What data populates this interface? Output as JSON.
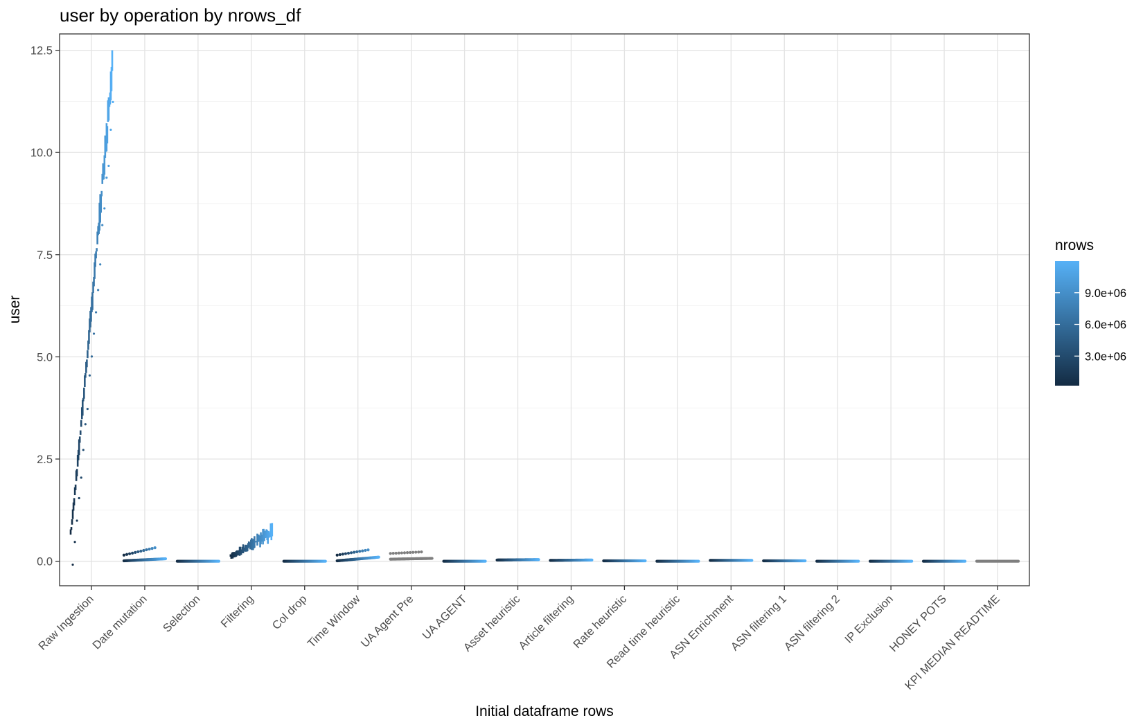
{
  "chart_data": {
    "type": "scatter",
    "title": "user by operation by nrows_df",
    "xlabel": "Initial dataframe rows",
    "ylabel": "user",
    "ylim": [
      -0.6,
      12.9
    ],
    "yticks": [
      0.0,
      2.5,
      5.0,
      7.5,
      10.0,
      12.5
    ],
    "ytick_labels": [
      "0.0",
      "2.5",
      "5.0",
      "7.5",
      "10.0",
      "12.5"
    ],
    "categories": [
      "Raw Ingestion",
      "Date mutation",
      "Selection",
      "Filtering",
      "Col drop",
      "Time Window",
      "UA Agent Pre",
      "UA AGENT",
      "Asset heuristic",
      "Article filtering",
      "Rate heuristic",
      "Read time heuristic",
      "ASN Enrichment",
      "ASN filtering 1",
      "ASN filtering 2",
      "IP Exclusion",
      "HONEY POTS",
      "KPI MEDIAN READTIME"
    ],
    "grid": true,
    "legend": {
      "title": "nrows",
      "position": "right",
      "type": "colorbar",
      "range": [
        200000,
        12000000
      ],
      "ticks": [
        3000000,
        6000000,
        9000000
      ],
      "tick_labels": [
        "3.0e+06",
        "6.0e+06",
        "9.0e+06"
      ],
      "low_color": "#132B43",
      "high_color": "#56B1F7",
      "na_color": "#7f7f7f"
    },
    "series": [
      {
        "category": "Raw Ingestion",
        "shape": "rising",
        "y_start": 0.65,
        "y_end": 12.05,
        "jitter": 0.35,
        "outliers": true
      },
      {
        "category": "Date mutation",
        "shape": "flat",
        "y_start": 0.01,
        "y_end": 0.06,
        "upper_start": 0.15,
        "upper_end": 0.39
      },
      {
        "category": "Selection",
        "shape": "flat",
        "y_start": 0.0,
        "y_end": 0.0
      },
      {
        "category": "Filtering",
        "shape": "rising",
        "y_start": 0.12,
        "y_end": 0.72,
        "jitter": 0.18
      },
      {
        "category": "Col drop",
        "shape": "flat",
        "y_start": 0.0,
        "y_end": 0.0
      },
      {
        "category": "Time Window",
        "shape": "flat",
        "y_start": 0.01,
        "y_end": 0.1,
        "upper_start": 0.15,
        "upper_end": 0.32
      },
      {
        "category": "UA Agent Pre",
        "shape": "flat",
        "y_start": 0.05,
        "y_end": 0.07,
        "na": true,
        "upper_start": 0.19,
        "upper_end": 0.24
      },
      {
        "category": "UA AGENT",
        "shape": "flat",
        "y_start": 0.0,
        "y_end": 0.0
      },
      {
        "category": "Asset heuristic",
        "shape": "flat",
        "y_start": 0.03,
        "y_end": 0.04
      },
      {
        "category": "Article filtering",
        "shape": "flat",
        "y_start": 0.02,
        "y_end": 0.03
      },
      {
        "category": "Rate heuristic",
        "shape": "flat",
        "y_start": 0.01,
        "y_end": 0.01
      },
      {
        "category": "Read time heuristic",
        "shape": "flat",
        "y_start": 0.0,
        "y_end": 0.0
      },
      {
        "category": "ASN Enrichment",
        "shape": "flat",
        "y_start": 0.02,
        "y_end": 0.02
      },
      {
        "category": "ASN filtering 1",
        "shape": "flat",
        "y_start": 0.01,
        "y_end": 0.01
      },
      {
        "category": "ASN filtering 2",
        "shape": "flat",
        "y_start": 0.0,
        "y_end": 0.0
      },
      {
        "category": "IP Exclusion",
        "shape": "flat",
        "y_start": 0.0,
        "y_end": 0.0
      },
      {
        "category": "HONEY POTS",
        "shape": "flat",
        "y_start": 0.0,
        "y_end": 0.0
      },
      {
        "category": "KPI MEDIAN READTIME",
        "shape": "flat",
        "y_start": 0.0,
        "y_end": 0.0,
        "na": true
      }
    ]
  }
}
